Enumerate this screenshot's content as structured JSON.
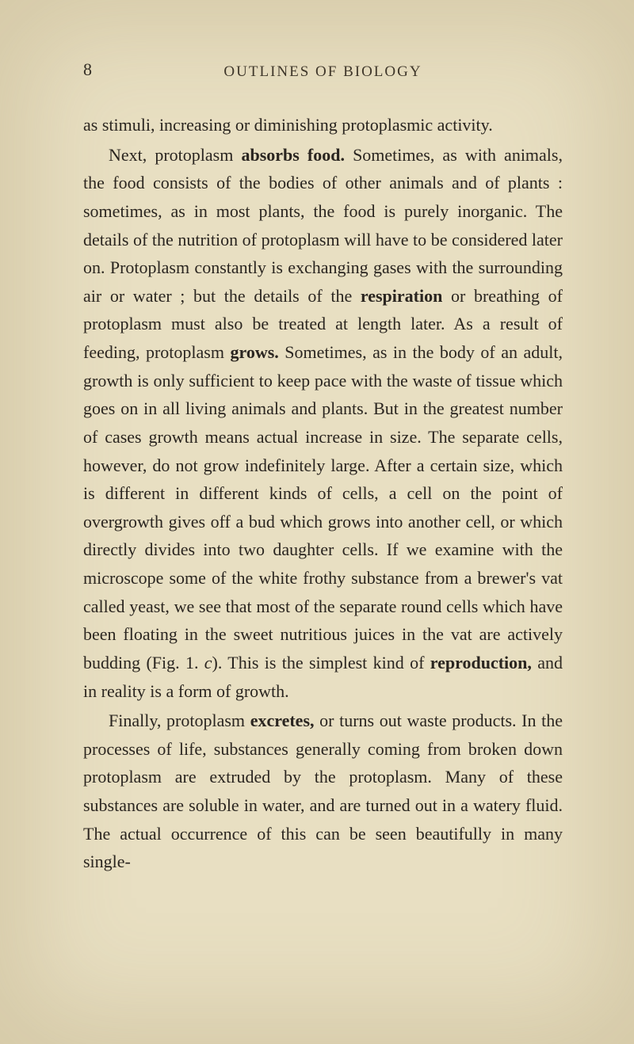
{
  "page": {
    "number": "8",
    "header": "OUTLINES OF BIOLOGY",
    "background_color": "#e8dfc2",
    "text_color": "#2a2520",
    "header_color": "#3a3328",
    "font_size_body": 22,
    "font_size_header": 19,
    "font_size_page_number": 22,
    "line_height": 1.62
  },
  "paragraphs": {
    "p1_part1": "as stimuli, increasing or diminishing protoplasmic acti­vity.",
    "p2_part1": "Next, protoplasm ",
    "p2_bold1": "absorbs food.",
    "p2_part2": " Sometimes, as with animals, the food consists of the bodies of other animals and of plants : sometimes, as in most plants, the food is purely inorganic. The details of the nutrition of proto­plasm will have to be considered later on. Protoplasm constantly is exchanging gases with the surrounding air or water ; but the details of the ",
    "p2_bold2": "respiration",
    "p2_part3": " or breathing of protoplasm must also be treated at length later. As a result of feeding, protoplasm ",
    "p2_bold3": "grows.",
    "p2_part4": " Sometimes, as in the body of an adult, growth is only sufficient to keep pace with the waste of tissue which goes on in all living animals and plants. But in the greatest number of cases growth means actual increase in size. The separate cells, however, do not grow indefinitely large. After a certain size, which is different in different kinds of cells, a cell on the point of overgrowth gives off a bud which grows into another cell, or which directly divides into two daughter cells. If we examine with the micro­scope some of the white frothy substance from a brewer's vat called yeast, we see that most of the separate round cells which have been floating in the sweet nutritious juices in the vat are actively budding (Fig. 1. ",
    "p2_italic1": "c",
    "p2_part5": "). This is the simplest kind of ",
    "p2_bold4": "reproduction,",
    "p2_part6": " and in reality is a form of growth.",
    "p3_part1": "Finally, protoplasm ",
    "p3_bold1": "excretes,",
    "p3_part2": " or turns out waste pro­ducts. In the processes of life, substances generally coming from broken down protoplasm are extruded by the protoplasm. Many of these substances are soluble in water, and are turned out in a watery fluid. The actual occurrence of this can be seen beautifully in many single-"
  }
}
